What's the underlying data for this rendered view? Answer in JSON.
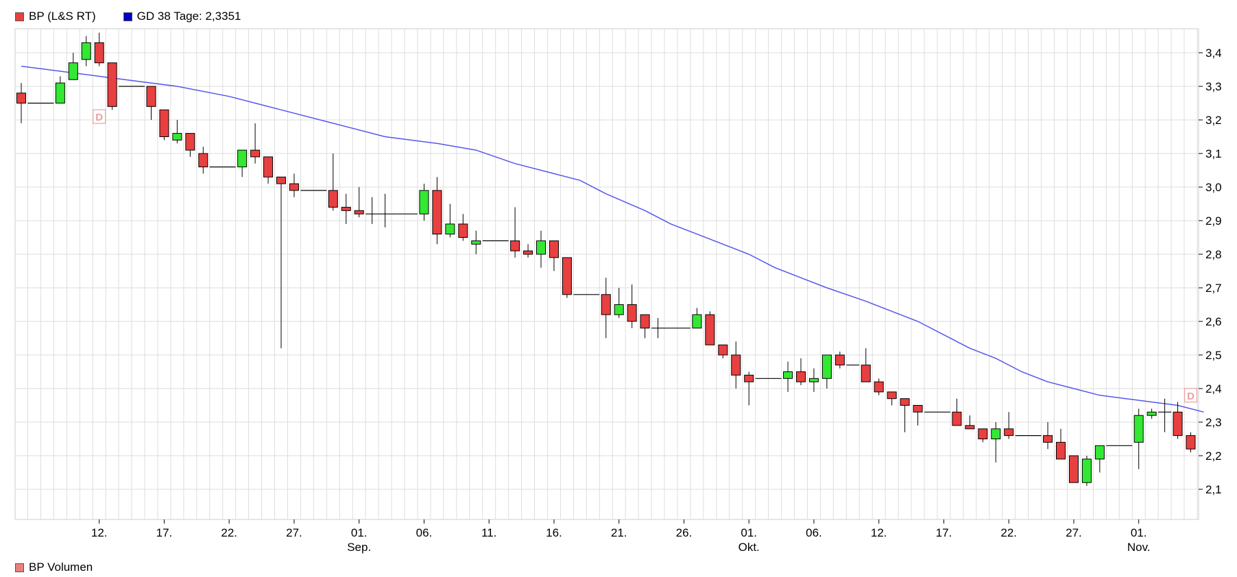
{
  "legend": {
    "series1": {
      "label": "BP (L&S RT)",
      "color": "#e84040"
    },
    "series2": {
      "label": "GD 38 Tage: 2,3351",
      "color": "#0000cc"
    }
  },
  "volume_legend": {
    "label": "BP Volumen",
    "color": "#e88080"
  },
  "colors": {
    "up": "#33e833",
    "down": "#e84040",
    "ma": "#5555ee",
    "grid": "#dddddd"
  },
  "chart_data": {
    "type": "candlestick",
    "ylim": [
      2.0,
      3.45
    ],
    "yticks": [
      "3,4",
      "3,3",
      "3,2",
      "3,1",
      "3,0",
      "2,9",
      "2,8",
      "2,7",
      "2,6",
      "2,5",
      "2,4",
      "2,3",
      "2,2",
      "2,1"
    ],
    "xticks": [
      {
        "i": 6,
        "label": "12."
      },
      {
        "i": 11,
        "label": "17."
      },
      {
        "i": 16,
        "label": "22."
      },
      {
        "i": 21,
        "label": "27."
      },
      {
        "i": 26,
        "label": "01.",
        "sub": "Sep."
      },
      {
        "i": 31,
        "label": "06."
      },
      {
        "i": 36,
        "label": "11."
      },
      {
        "i": 41,
        "label": "16."
      },
      {
        "i": 46,
        "label": "21."
      },
      {
        "i": 51,
        "label": "26."
      },
      {
        "i": 56,
        "label": "01.",
        "sub": "Okt."
      },
      {
        "i": 61,
        "label": "06."
      },
      {
        "i": 66,
        "label": "12."
      },
      {
        "i": 71,
        "label": "17."
      },
      {
        "i": 76,
        "label": "22."
      },
      {
        "i": 81,
        "label": "27."
      },
      {
        "i": 86,
        "label": "01.",
        "sub": "Nov."
      }
    ],
    "markers": [
      {
        "i": 6,
        "y": 3.21,
        "label": "D"
      },
      {
        "i": 90,
        "y": 2.38,
        "label": "D"
      }
    ],
    "candles": [
      [
        3.28,
        3.31,
        3.19,
        3.25
      ],
      [
        3.25,
        3.25,
        3.25,
        3.25
      ],
      [
        3.25,
        3.25,
        3.25,
        3.25
      ],
      [
        3.25,
        3.33,
        3.25,
        3.31
      ],
      [
        3.32,
        3.4,
        3.32,
        3.37
      ],
      [
        3.38,
        3.45,
        3.36,
        3.43
      ],
      [
        3.43,
        3.46,
        3.36,
        3.37
      ],
      [
        3.37,
        3.37,
        3.23,
        3.24
      ],
      [
        3.3,
        3.3,
        3.3,
        3.3
      ],
      [
        3.3,
        3.3,
        3.3,
        3.3
      ],
      [
        3.3,
        3.3,
        3.2,
        3.24
      ],
      [
        3.23,
        3.23,
        3.14,
        3.15
      ],
      [
        3.14,
        3.2,
        3.13,
        3.16
      ],
      [
        3.16,
        3.16,
        3.09,
        3.11
      ],
      [
        3.1,
        3.12,
        3.04,
        3.06
      ],
      [
        3.06,
        3.06,
        3.06,
        3.06
      ],
      [
        3.06,
        3.06,
        3.06,
        3.06
      ],
      [
        3.06,
        3.1,
        3.03,
        3.11
      ],
      [
        3.11,
        3.19,
        3.07,
        3.09
      ],
      [
        3.09,
        3.09,
        3.01,
        3.03
      ],
      [
        3.03,
        3.03,
        2.52,
        3.01
      ],
      [
        3.01,
        3.04,
        2.97,
        2.99
      ],
      [
        2.99,
        2.99,
        2.99,
        2.99
      ],
      [
        2.99,
        2.99,
        2.99,
        2.99
      ],
      [
        2.99,
        3.1,
        2.93,
        2.94
      ],
      [
        2.94,
        2.98,
        2.89,
        2.93
      ],
      [
        2.93,
        3.0,
        2.91,
        2.92
      ],
      [
        2.92,
        2.97,
        2.89,
        2.92
      ],
      [
        2.92,
        2.98,
        2.88,
        2.92
      ],
      [
        2.92,
        2.92,
        2.92,
        2.92
      ],
      [
        2.92,
        2.92,
        2.92,
        2.92
      ],
      [
        2.92,
        3.01,
        2.9,
        2.99
      ],
      [
        2.99,
        3.03,
        2.83,
        2.86
      ],
      [
        2.86,
        2.95,
        2.85,
        2.89
      ],
      [
        2.89,
        2.92,
        2.84,
        2.85
      ],
      [
        2.83,
        2.87,
        2.8,
        2.84
      ],
      [
        2.84,
        2.84,
        2.84,
        2.84
      ],
      [
        2.84,
        2.84,
        2.84,
        2.84
      ],
      [
        2.84,
        2.94,
        2.79,
        2.81
      ],
      [
        2.81,
        2.83,
        2.79,
        2.8
      ],
      [
        2.8,
        2.87,
        2.76,
        2.84
      ],
      [
        2.84,
        2.84,
        2.75,
        2.79
      ],
      [
        2.79,
        2.79,
        2.67,
        2.68
      ],
      [
        2.68,
        2.68,
        2.68,
        2.68
      ],
      [
        2.68,
        2.68,
        2.68,
        2.68
      ],
      [
        2.68,
        2.73,
        2.55,
        2.62
      ],
      [
        2.62,
        2.7,
        2.61,
        2.65
      ],
      [
        2.65,
        2.71,
        2.58,
        2.6
      ],
      [
        2.62,
        2.62,
        2.55,
        2.58
      ],
      [
        2.58,
        2.61,
        2.55,
        2.58
      ],
      [
        2.58,
        2.58,
        2.58,
        2.58
      ],
      [
        2.58,
        2.58,
        2.58,
        2.58
      ],
      [
        2.58,
        2.64,
        2.58,
        2.62
      ],
      [
        2.62,
        2.63,
        2.53,
        2.53
      ],
      [
        2.53,
        2.53,
        2.49,
        2.5
      ],
      [
        2.5,
        2.54,
        2.4,
        2.44
      ],
      [
        2.44,
        2.45,
        2.35,
        2.42
      ],
      [
        2.43,
        2.43,
        2.43,
        2.43
      ],
      [
        2.43,
        2.43,
        2.43,
        2.43
      ],
      [
        2.43,
        2.48,
        2.39,
        2.45
      ],
      [
        2.45,
        2.49,
        2.41,
        2.42
      ],
      [
        2.42,
        2.46,
        2.39,
        2.43
      ],
      [
        2.43,
        2.5,
        2.4,
        2.5
      ],
      [
        2.5,
        2.51,
        2.46,
        2.47
      ],
      [
        2.47,
        2.47,
        2.47,
        2.47
      ],
      [
        2.47,
        2.52,
        2.42,
        2.42
      ],
      [
        2.42,
        2.43,
        2.38,
        2.39
      ],
      [
        2.39,
        2.39,
        2.35,
        2.37
      ],
      [
        2.37,
        2.37,
        2.27,
        2.35
      ],
      [
        2.35,
        2.35,
        2.29,
        2.33
      ],
      [
        2.33,
        2.33,
        2.33,
        2.33
      ],
      [
        2.33,
        2.33,
        2.33,
        2.33
      ],
      [
        2.33,
        2.37,
        2.29,
        2.29
      ],
      [
        2.29,
        2.32,
        2.28,
        2.28
      ],
      [
        2.28,
        2.28,
        2.24,
        2.25
      ],
      [
        2.25,
        2.3,
        2.18,
        2.28
      ],
      [
        2.28,
        2.33,
        2.25,
        2.26
      ],
      [
        2.26,
        2.26,
        2.26,
        2.26
      ],
      [
        2.26,
        2.26,
        2.26,
        2.26
      ],
      [
        2.26,
        2.3,
        2.22,
        2.24
      ],
      [
        2.24,
        2.28,
        2.19,
        2.19
      ],
      [
        2.2,
        2.2,
        2.12,
        2.12
      ],
      [
        2.12,
        2.2,
        2.11,
        2.19
      ],
      [
        2.19,
        2.23,
        2.15,
        2.23
      ],
      [
        2.23,
        2.23,
        2.23,
        2.23
      ],
      [
        2.23,
        2.23,
        2.23,
        2.23
      ],
      [
        2.24,
        2.34,
        2.16,
        2.32
      ],
      [
        2.32,
        2.34,
        2.31,
        2.33
      ],
      [
        2.33,
        2.37,
        2.27,
        2.33
      ],
      [
        2.33,
        2.36,
        2.25,
        2.26
      ],
      [
        2.26,
        2.27,
        2.21,
        2.22
      ]
    ],
    "ma": {
      "name": "GD 38 Tage",
      "values": [
        [
          0,
          3.36
        ],
        [
          4,
          3.34
        ],
        [
          8,
          3.32
        ],
        [
          12,
          3.3
        ],
        [
          16,
          3.27
        ],
        [
          20,
          3.23
        ],
        [
          24,
          3.19
        ],
        [
          28,
          3.15
        ],
        [
          32,
          3.13
        ],
        [
          35,
          3.11
        ],
        [
          38,
          3.07
        ],
        [
          41,
          3.04
        ],
        [
          43,
          3.02
        ],
        [
          45,
          2.98
        ],
        [
          48,
          2.93
        ],
        [
          50,
          2.89
        ],
        [
          52,
          2.86
        ],
        [
          54,
          2.83
        ],
        [
          56,
          2.8
        ],
        [
          58,
          2.76
        ],
        [
          60,
          2.73
        ],
        [
          62,
          2.7
        ],
        [
          65,
          2.66
        ],
        [
          67,
          2.63
        ],
        [
          69,
          2.6
        ],
        [
          71,
          2.56
        ],
        [
          73,
          2.52
        ],
        [
          75,
          2.49
        ],
        [
          77,
          2.45
        ],
        [
          79,
          2.42
        ],
        [
          81,
          2.4
        ],
        [
          83,
          2.38
        ],
        [
          85,
          2.37
        ],
        [
          87,
          2.36
        ],
        [
          89,
          2.35
        ],
        [
          91,
          2.33
        ]
      ]
    }
  }
}
